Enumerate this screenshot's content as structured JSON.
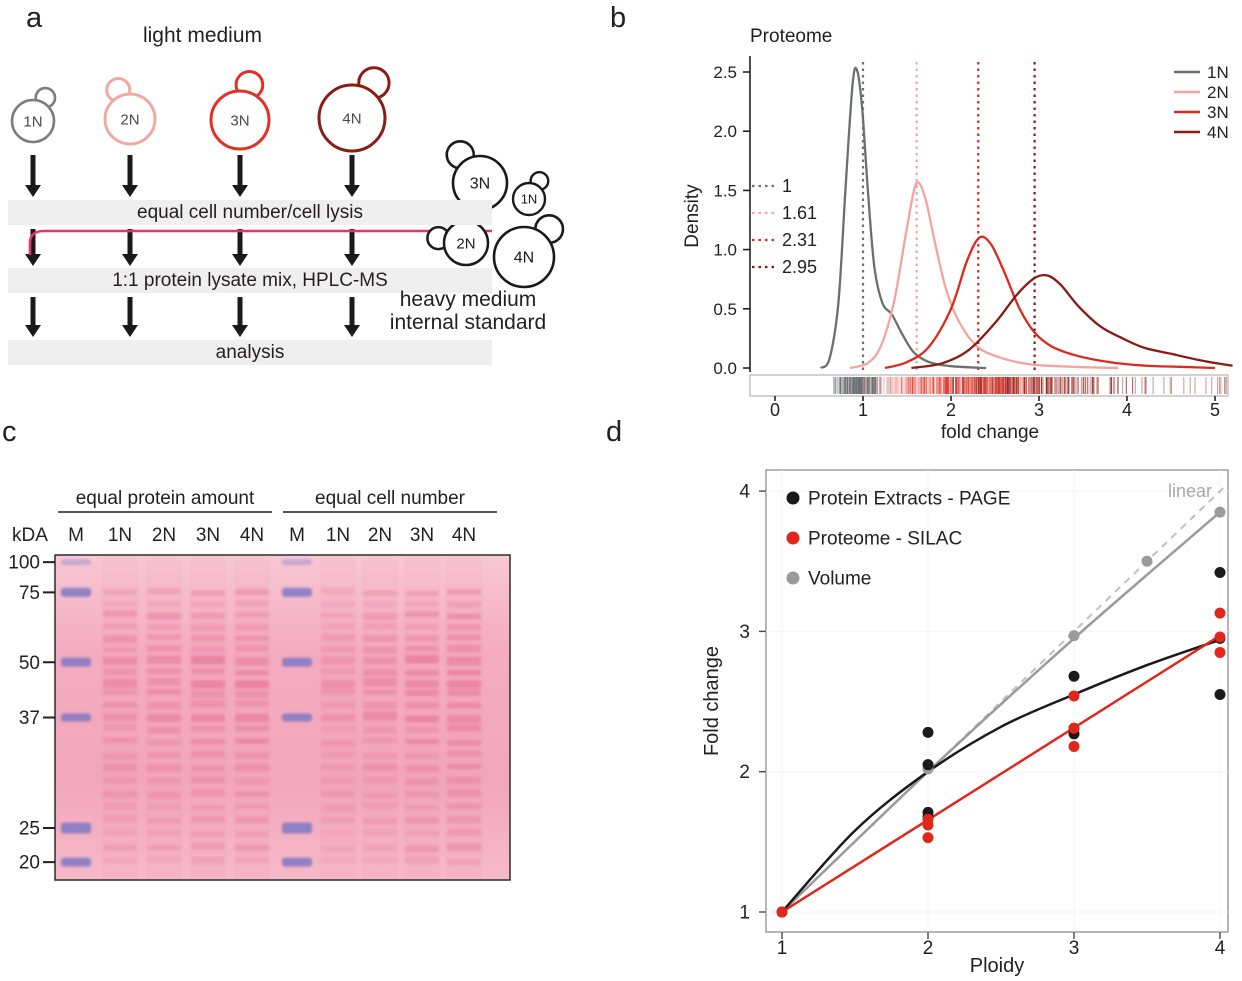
{
  "figure": {
    "background": "#ffffff"
  },
  "panel_a": {
    "label": "a",
    "title": "light medium",
    "cells": [
      {
        "label": "1N",
        "color": "#7d7d80"
      },
      {
        "label": "2N",
        "color": "#f0a9a3"
      },
      {
        "label": "3N",
        "color": "#e13126"
      },
      {
        "label": "4N",
        "color": "#8c1b14"
      }
    ],
    "steps": [
      "equal cell number/cell lysis",
      "1:1 protein lysate mix, HPLC-MS",
      "analysis"
    ],
    "standard": {
      "cells": [
        "3N",
        "1N",
        "2N",
        "4N"
      ],
      "caption_line1": "heavy medium",
      "caption_line2": "internal standard",
      "outline_color": "#1a1a1a"
    },
    "mix_line_color": "#e0356e"
  },
  "panel_b": {
    "label": "b"
  },
  "panel_c": {
    "label": "c",
    "kda_label": "kDA",
    "markers": [
      "100",
      "75",
      "50",
      "37",
      "25",
      "20"
    ],
    "groups": [
      {
        "title": "equal protein amount",
        "lanes": [
          "M",
          "1N",
          "2N",
          "3N",
          "4N"
        ]
      },
      {
        "title": "equal cell number",
        "lanes": [
          "M",
          "1N",
          "2N",
          "3N",
          "4N"
        ]
      }
    ],
    "gel_colors": {
      "background": "#f4aec2",
      "band": "#e76f93",
      "marker_band": "#837ac4"
    }
  },
  "panel_d": {
    "label": "d"
  },
  "chart_data": [
    {
      "id": "proteome_density",
      "type": "line",
      "title": "Proteome",
      "xlabel": "fold change",
      "ylabel": "Density",
      "xlim": [
        0,
        5.2
      ],
      "ylim": [
        0,
        2.6
      ],
      "xticks": [
        0,
        1,
        2,
        3,
        4,
        5
      ],
      "yticks": [
        0.0,
        0.5,
        1.0,
        1.5,
        2.0,
        2.5
      ],
      "legend_position": "top-right",
      "grid": false,
      "vlines": [
        {
          "x": 1,
          "label": "1",
          "color": "#6d6e71"
        },
        {
          "x": 1.61,
          "label": "1.61",
          "color": "#f4a49e"
        },
        {
          "x": 2.31,
          "label": "2.31",
          "color": "#e0271c"
        },
        {
          "x": 2.95,
          "label": "2.95",
          "color": "#8a1a12"
        }
      ],
      "series": [
        {
          "name": "1N",
          "color": "#6d6e71",
          "points": [
            [
              0.52,
              0
            ],
            [
              0.62,
              0.08
            ],
            [
              0.72,
              0.55
            ],
            [
              0.8,
              1.5
            ],
            [
              0.88,
              2.38
            ],
            [
              0.93,
              2.52
            ],
            [
              0.99,
              2.2
            ],
            [
              1.06,
              1.45
            ],
            [
              1.13,
              0.85
            ],
            [
              1.22,
              0.55
            ],
            [
              1.33,
              0.45
            ],
            [
              1.45,
              0.28
            ],
            [
              1.58,
              0.13
            ],
            [
              1.75,
              0.05
            ],
            [
              2.0,
              0.015
            ],
            [
              2.4,
              0
            ]
          ]
        },
        {
          "name": "2N",
          "color": "#f4a49e",
          "points": [
            [
              0.85,
              0
            ],
            [
              1.05,
              0.04
            ],
            [
              1.2,
              0.18
            ],
            [
              1.35,
              0.55
            ],
            [
              1.48,
              1.1
            ],
            [
              1.58,
              1.5
            ],
            [
              1.64,
              1.56
            ],
            [
              1.72,
              1.4
            ],
            [
              1.82,
              1.05
            ],
            [
              1.95,
              0.65
            ],
            [
              2.1,
              0.38
            ],
            [
              2.3,
              0.18
            ],
            [
              2.55,
              0.09
            ],
            [
              2.9,
              0.03
            ],
            [
              3.4,
              0.01
            ],
            [
              3.9,
              0
            ]
          ]
        },
        {
          "name": "3N",
          "color": "#e0271c",
          "points": [
            [
              1.25,
              0
            ],
            [
              1.5,
              0.05
            ],
            [
              1.75,
              0.18
            ],
            [
              2.0,
              0.5
            ],
            [
              2.18,
              0.9
            ],
            [
              2.32,
              1.1
            ],
            [
              2.45,
              1.05
            ],
            [
              2.6,
              0.82
            ],
            [
              2.78,
              0.5
            ],
            [
              2.95,
              0.3
            ],
            [
              3.15,
              0.18
            ],
            [
              3.45,
              0.1
            ],
            [
              3.8,
              0.05
            ],
            [
              4.2,
              0.02
            ],
            [
              4.6,
              0.01
            ],
            [
              5.0,
              0
            ]
          ]
        },
        {
          "name": "4N",
          "color": "#8a1a12",
          "points": [
            [
              1.55,
              0
            ],
            [
              1.9,
              0.04
            ],
            [
              2.2,
              0.15
            ],
            [
              2.5,
              0.38
            ],
            [
              2.75,
              0.62
            ],
            [
              2.95,
              0.76
            ],
            [
              3.1,
              0.78
            ],
            [
              3.25,
              0.7
            ],
            [
              3.45,
              0.52
            ],
            [
              3.7,
              0.35
            ],
            [
              3.95,
              0.25
            ],
            [
              4.2,
              0.17
            ],
            [
              4.5,
              0.12
            ],
            [
              4.8,
              0.07
            ],
            [
              5.1,
              0.03
            ],
            [
              5.2,
              0.02
            ]
          ]
        }
      ],
      "rug": true
    },
    {
      "id": "fold_change_vs_ploidy",
      "type": "scatter",
      "xlabel": "Ploidy",
      "ylabel": "Fold change",
      "xticks": [
        1,
        2,
        3,
        4
      ],
      "yticks": [
        1,
        2,
        3,
        4
      ],
      "xlim": [
        0.9,
        4.15
      ],
      "ylim": [
        0.9,
        4.15
      ],
      "grid": false,
      "reference_line": {
        "style": "dashed",
        "from": [
          1,
          1
        ],
        "to": [
          4,
          4
        ],
        "color": "#c0c0c0",
        "label": "linear"
      },
      "series": [
        {
          "name": "Protein Extracts - PAGE",
          "color": "#1a1a1a",
          "points": [
            [
              1,
              1
            ],
            [
              2,
              1.68
            ],
            [
              2,
              1.71
            ],
            [
              2,
              2.05
            ],
            [
              2,
              2.28
            ],
            [
              3,
              2.27
            ],
            [
              3,
              2.31
            ],
            [
              3,
              2.68
            ],
            [
              4,
              2.55
            ],
            [
              4,
              2.95
            ],
            [
              4,
              3.42
            ]
          ],
          "fit": [
            [
              1,
              1
            ],
            [
              1.5,
              1.58
            ],
            [
              2,
              2.0
            ],
            [
              2.5,
              2.32
            ],
            [
              3,
              2.55
            ],
            [
              3.5,
              2.76
            ],
            [
              4,
              2.94
            ]
          ]
        },
        {
          "name": "Proteome - SILAC",
          "color": "#e0271c",
          "points": [
            [
              1,
              1
            ],
            [
              2,
              1.53
            ],
            [
              2,
              1.62
            ],
            [
              2,
              1.66
            ],
            [
              3,
              2.18
            ],
            [
              3,
              2.31
            ],
            [
              3,
              2.54
            ],
            [
              4,
              2.85
            ],
            [
              4,
              2.96
            ],
            [
              4,
              3.13
            ]
          ],
          "fit": [
            [
              1,
              1
            ],
            [
              4,
              2.97
            ]
          ]
        },
        {
          "name": "Volume",
          "color": "#9b9b9b",
          "points": [
            [
              1,
              1
            ],
            [
              2,
              2.02
            ],
            [
              3,
              2.97
            ],
            [
              3.5,
              3.5
            ],
            [
              4,
              3.85
            ]
          ],
          "fit": [
            [
              1,
              1
            ],
            [
              2,
              2.0
            ],
            [
              3,
              2.95
            ],
            [
              4,
              3.85
            ]
          ]
        }
      ]
    }
  ]
}
